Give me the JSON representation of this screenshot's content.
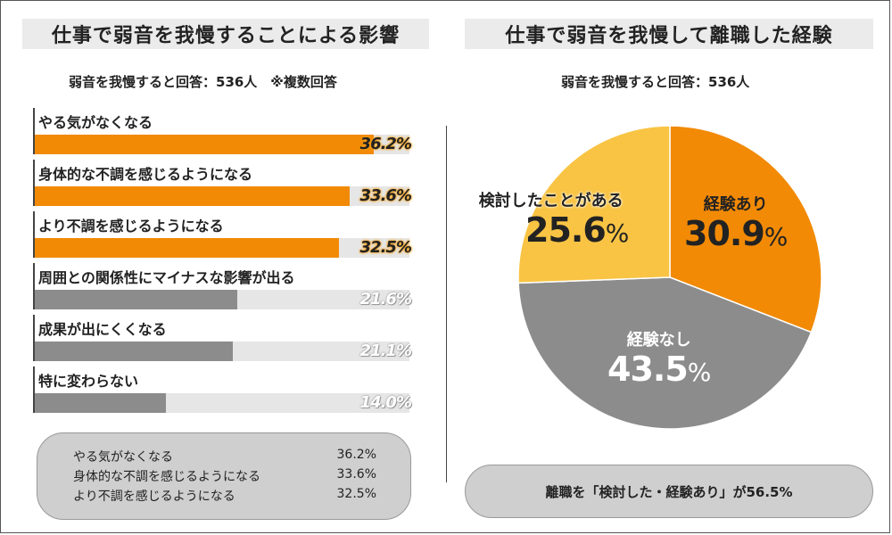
{
  "left": {
    "title": "仕事で弱音を我慢することによる影響",
    "subtitle": "弱音を我慢すると回答：536人　※複数回答"
  },
  "right": {
    "title": "仕事で弱音を我慢して離職した経験",
    "subtitle": "弱音を我慢すると回答：536人"
  },
  "colors": {
    "orange": "#f28a05",
    "gray": "#8c8c8c",
    "yellow": "#f9c444",
    "track": "#e6e6e6"
  },
  "chart_data": [
    {
      "type": "bar",
      "orientation": "horizontal",
      "categories": [
        "やる気がなくなる",
        "身体的な不調を感じるようになる",
        "より不調を感じるようになる",
        "周囲との関係性にマイナスな影響が出る",
        "成果が出にくくなる",
        "特に変わらない"
      ],
      "values": [
        36.2,
        33.6,
        32.5,
        21.6,
        21.1,
        14.0
      ],
      "value_labels": [
        "36.2%",
        "33.6%",
        "32.5%",
        "21.6%",
        "21.1%",
        "14.0%"
      ],
      "highlight_top": 3,
      "xlim": [
        0,
        40
      ]
    },
    {
      "type": "pie",
      "slices": [
        {
          "name": "経験あり",
          "value": 30.9,
          "label": "30.9",
          "color": "#f28a05"
        },
        {
          "name": "経験なし",
          "value": 43.5,
          "label": "43.5",
          "color": "#8c8c8c"
        },
        {
          "name": "検討したことがある",
          "value": 25.6,
          "label": "25.6",
          "color": "#f9c444"
        }
      ],
      "percent_sign": "%"
    }
  ],
  "summary_left": [
    {
      "label": "やる気がなくなる",
      "value": "36.2%"
    },
    {
      "label": "身体的な不調を感じるようになる",
      "value": "33.6%"
    },
    {
      "label": "より不調を感じるようになる",
      "value": "32.5%"
    }
  ],
  "summary_right": "離職を「検討した・経験あり」が56.5%"
}
